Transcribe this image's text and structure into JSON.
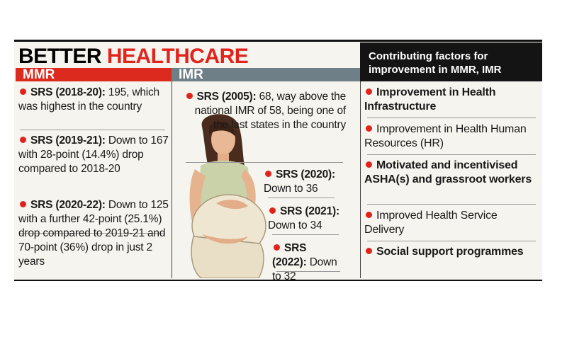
{
  "title": {
    "first": "BETTER",
    "second": "HEALTHCARE"
  },
  "mmr": {
    "heading": "MMR",
    "items": [
      {
        "label": "SRS (2018-20):",
        "text": "195, which was highest in the country"
      },
      {
        "label": "SRS (2019-21):",
        "text": "Down to 167 with 28-point (14.4%) drop compared to 2018-20"
      },
      {
        "label": "SRS (2020-22):",
        "text": "Down to 125 with a further 42-point (25.1%) drop compared to 2019-21 and 70-point (36%) drop in just 2 years"
      }
    ]
  },
  "imr": {
    "heading": "IMR",
    "items": [
      {
        "label": "SRS (2005):",
        "text": "68, way above the national IMR of 58, being one of the last states in the country"
      },
      {
        "label": "SRS (2020):",
        "text": "Down to 36"
      },
      {
        "label": "SRS (2021):",
        "text": "Down to 34"
      },
      {
        "label": "SRS (2022):",
        "text": "Down to 32"
      }
    ]
  },
  "factors": {
    "heading": "Contributing factors for improvement in MMR, IMR",
    "items": [
      {
        "text": "Improvement in Health Infrastructure",
        "bold": true
      },
      {
        "text": "Improvement in Health Human Resources (HR)",
        "bold": false
      },
      {
        "text": "Motivated and incentivised ASHA(s) and grassroot workers",
        "bold": true
      },
      {
        "text": "Improved Health Service Delivery",
        "bold": false
      },
      {
        "text": "Social support programmes",
        "bold": true
      }
    ]
  }
}
